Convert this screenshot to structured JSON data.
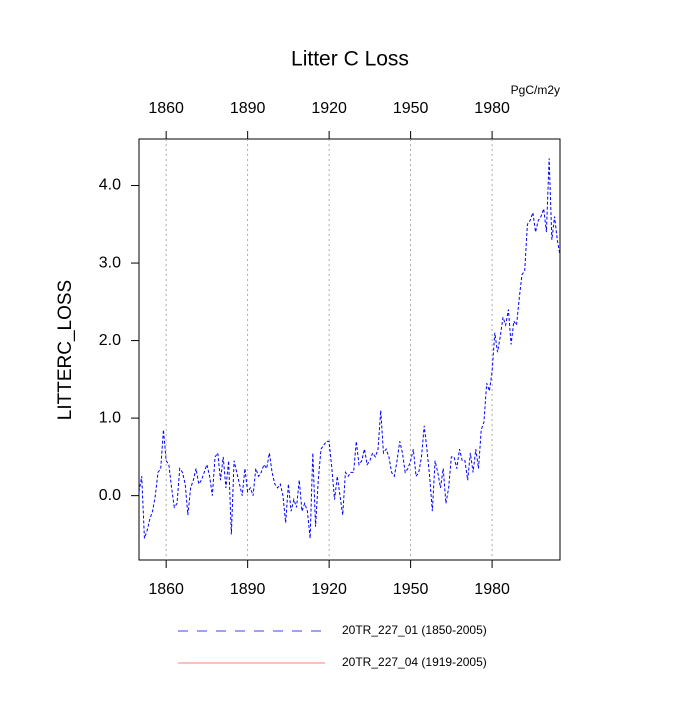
{
  "chart_data": {
    "type": "line",
    "title": "Litter C Loss",
    "units": "PgC/m2y",
    "y_label": "LITTERC_LOSS",
    "xlim": [
      1850,
      2005
    ],
    "ylim": [
      -0.83,
      4.6
    ],
    "xticks": [
      1860,
      1890,
      1920,
      1950,
      1980
    ],
    "yticks": [
      {
        "value": 0,
        "label": "0.0"
      },
      {
        "value": 1,
        "label": "1.0"
      },
      {
        "value": 2,
        "label": "2.0"
      },
      {
        "value": 3,
        "label": "3.0"
      },
      {
        "value": 4,
        "label": "4.0"
      }
    ],
    "top_tick_color": "#0000ff",
    "bottom_tick_color": "#ff0000",
    "grid": true,
    "x": [
      1850,
      1851,
      1852,
      1853,
      1854,
      1855,
      1856,
      1857,
      1858,
      1859,
      1860,
      1861,
      1862,
      1863,
      1864,
      1865,
      1866,
      1867,
      1868,
      1869,
      1870,
      1871,
      1872,
      1873,
      1874,
      1875,
      1876,
      1877,
      1878,
      1879,
      1880,
      1881,
      1882,
      1883,
      1884,
      1885,
      1886,
      1887,
      1888,
      1889,
      1890,
      1891,
      1892,
      1893,
      1894,
      1895,
      1896,
      1897,
      1898,
      1899,
      1900,
      1901,
      1902,
      1903,
      1904,
      1905,
      1906,
      1907,
      1908,
      1909,
      1910,
      1911,
      1912,
      1913,
      1914,
      1915,
      1916,
      1917,
      1918,
      1919,
      1920,
      1921,
      1922,
      1923,
      1924,
      1925,
      1926,
      1927,
      1928,
      1929,
      1930,
      1931,
      1932,
      1933,
      1934,
      1935,
      1936,
      1937,
      1938,
      1939,
      1940,
      1941,
      1942,
      1943,
      1944,
      1945,
      1946,
      1947,
      1948,
      1949,
      1950,
      1951,
      1952,
      1953,
      1954,
      1955,
      1956,
      1957,
      1958,
      1959,
      1960,
      1961,
      1962,
      1963,
      1964,
      1965,
      1966,
      1967,
      1968,
      1969,
      1970,
      1971,
      1972,
      1973,
      1974,
      1975,
      1976,
      1977,
      1978,
      1979,
      1980,
      1981,
      1982,
      1983,
      1984,
      1985,
      1986,
      1987,
      1988,
      1989,
      1990,
      1991,
      1992,
      1993,
      1994,
      1995,
      1996,
      1997,
      1998,
      1999,
      2000,
      2001,
      2002,
      2003,
      2004,
      2005
    ],
    "series": [
      {
        "name": "20TR_227_01 (1850-2005)",
        "color": "#0000ff",
        "dash": true,
        "values": [
          0.05,
          0.25,
          -0.55,
          -0.45,
          -0.3,
          -0.2,
          0.0,
          0.3,
          0.35,
          0.85,
          0.45,
          0.4,
          0.1,
          -0.15,
          -0.1,
          0.35,
          0.3,
          0.15,
          -0.25,
          0.1,
          0.2,
          0.35,
          0.15,
          0.2,
          0.3,
          0.4,
          0.25,
          0.0,
          0.5,
          0.55,
          0.2,
          0.5,
          0.1,
          0.45,
          -0.5,
          0.45,
          0.3,
          0.15,
          0.0,
          0.35,
          0.05,
          0.1,
          0.0,
          0.35,
          0.25,
          0.3,
          0.4,
          0.35,
          0.55,
          0.3,
          0.15,
          0.1,
          0.15,
          0.0,
          -0.35,
          0.15,
          -0.2,
          -0.05,
          -0.15,
          0.2,
          -0.2,
          -0.1,
          -0.2,
          -0.55,
          0.55,
          -0.4,
          0.2,
          0.6,
          0.65,
          0.7,
          0.7,
          0.35,
          -0.05,
          0.25,
          0.0,
          -0.25,
          0.3,
          0.25,
          0.3,
          0.3,
          0.7,
          0.4,
          0.45,
          0.6,
          0.4,
          0.45,
          0.55,
          0.5,
          0.6,
          1.1,
          0.55,
          0.6,
          0.5,
          0.3,
          0.25,
          0.45,
          0.7,
          0.55,
          0.3,
          0.35,
          0.45,
          0.6,
          0.25,
          0.3,
          0.5,
          0.9,
          0.6,
          0.25,
          -0.2,
          0.45,
          0.3,
          0.1,
          0.35,
          -0.1,
          0.1,
          0.5,
          0.5,
          0.35,
          0.6,
          0.45,
          0.45,
          0.2,
          0.55,
          0.3,
          0.6,
          0.35,
          0.85,
          0.95,
          1.45,
          1.35,
          1.6,
          2.1,
          1.85,
          2.05,
          2.3,
          2.2,
          2.4,
          1.95,
          2.25,
          2.2,
          2.55,
          2.85,
          2.9,
          3.5,
          3.55,
          3.65,
          3.4,
          3.55,
          3.6,
          3.7,
          3.4,
          4.35,
          3.3,
          3.6,
          3.3,
          3.1
        ]
      },
      {
        "name": "20TR_227_04 (1919-2005)",
        "color": "#ff0000",
        "dash": false,
        "values": [
          null,
          null,
          null,
          null,
          null,
          null,
          null,
          null,
          null,
          null,
          null,
          null,
          null,
          null,
          null,
          null,
          null,
          null,
          null,
          null,
          null,
          null,
          null,
          null,
          null,
          null,
          null,
          null,
          null,
          null,
          null,
          null,
          null,
          null,
          null,
          null,
          null,
          null,
          null,
          null,
          null,
          null,
          null,
          null,
          null,
          null,
          null,
          null,
          null,
          null,
          null,
          null,
          null,
          null,
          null,
          null,
          null,
          null,
          null,
          null,
          null,
          null,
          null,
          null,
          null,
          null,
          null,
          null,
          null,
          null,
          null,
          null,
          null,
          null,
          null,
          null,
          null,
          null,
          null,
          null,
          null,
          null,
          null,
          null,
          null,
          null,
          null,
          null,
          null,
          null,
          null,
          null,
          null,
          null,
          null,
          null,
          null,
          null,
          null,
          null,
          null,
          null,
          null,
          null,
          null,
          null,
          null,
          null,
          null,
          null,
          null,
          null,
          null,
          null,
          null,
          null,
          null,
          null,
          null,
          null,
          null,
          null,
          null,
          null,
          null,
          null,
          null,
          null,
          null,
          null,
          null,
          null,
          null,
          null,
          null,
          null,
          null,
          null,
          null,
          null,
          null,
          null,
          null,
          null,
          null,
          null,
          null,
          null,
          null,
          null,
          null,
          null,
          null,
          null,
          null,
          null
        ]
      }
    ]
  }
}
